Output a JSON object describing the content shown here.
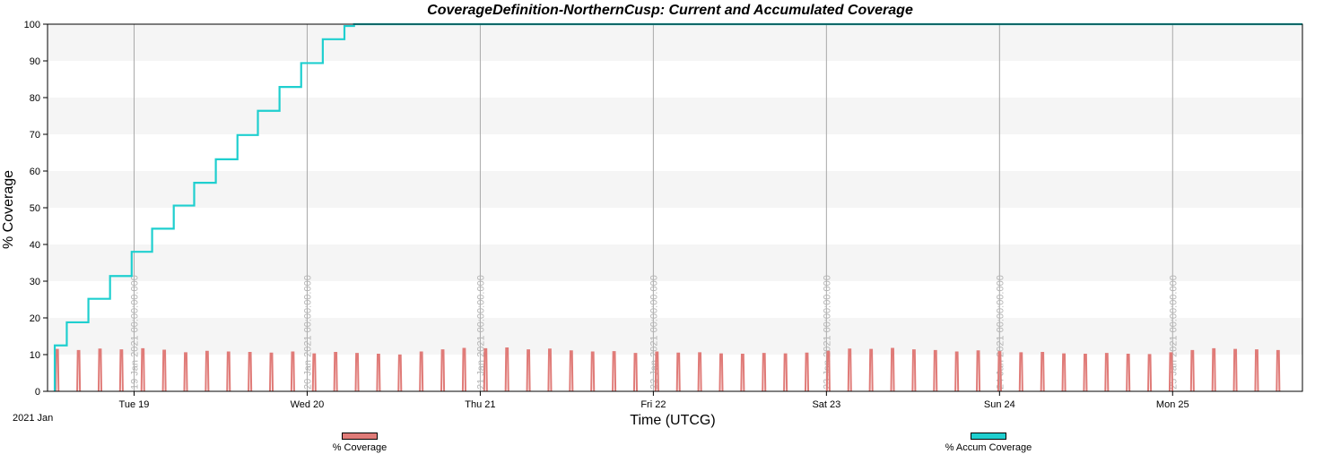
{
  "chart_data": {
    "type": "line",
    "title": "CoverageDefinition-NorthernCusp:  Current and Accumulated Coverage",
    "xlabel": "Time (UTCG)",
    "ylabel": "% Coverage",
    "year_label": "2021 Jan",
    "x_range": [
      "2021-01-18 12:00:00",
      "2021-01-25 18:00:00"
    ],
    "ylim": [
      0,
      100
    ],
    "y_ticks": [
      "0",
      "10",
      "20",
      "30",
      "40",
      "50",
      "60",
      "70",
      "80",
      "90",
      "100"
    ],
    "x_ticks": [
      {
        "x": "2021-01-19 00:00:00",
        "label": "Tue 19",
        "gridline_label": "19 Jan 2021 00:00:00.000"
      },
      {
        "x": "2021-01-20 00:00:00",
        "label": "Wed 20",
        "gridline_label": "20 Jan 2021 00:00:00.000"
      },
      {
        "x": "2021-01-21 00:00:00",
        "label": "Thu 21",
        "gridline_label": "21 Jan 2021 00:00:00.000"
      },
      {
        "x": "2021-01-22 00:00:00",
        "label": "Fri 22",
        "gridline_label": "22 Jan 2021 00:00:00.000"
      },
      {
        "x": "2021-01-23 00:00:00",
        "label": "Sat 23",
        "gridline_label": "23 Jan 2021 00:00:00.000"
      },
      {
        "x": "2021-01-24 00:00:00",
        "label": "Sun 24",
        "gridline_label": "24 Jan 2021 00:00:00.000"
      },
      {
        "x": "2021-01-25 00:00:00",
        "label": "Mon 25",
        "gridline_label": "25 Jan 2021 00:00:00.000"
      }
    ],
    "grid": "vertical gridlines at day ticks, alternating horizontal bands",
    "legend_position": "bottom",
    "series": [
      {
        "name": "% Coverage",
        "color": "#e07b78",
        "style": "periodic spikes",
        "pass_period_hours": 2.97,
        "first_pass": "2021-01-18 13:20:00",
        "last_pass": "2021-01-25 16:40:00",
        "spike_width_hours": 0.38,
        "peak_values": [
          11.3,
          11.0,
          11.4,
          11.2,
          11.5,
          11.1,
          10.4,
          10.8,
          10.6,
          10.5,
          10.3,
          10.6,
          10.1,
          10.5,
          10.2,
          10.0,
          9.8,
          10.6,
          11.2,
          11.6,
          11.5,
          11.7,
          11.2,
          11.4,
          10.9,
          10.6,
          10.7,
          10.2,
          10.6,
          10.3,
          10.4,
          10.1,
          10.0,
          10.2,
          10.1,
          10.3,
          10.8,
          11.4,
          11.3,
          11.6,
          11.2,
          11.0,
          10.6,
          10.9,
          10.7,
          10.4,
          10.5,
          10.1,
          10.0,
          10.2,
          10.0,
          9.9,
          10.4,
          11.0,
          11.5,
          11.3,
          11.2,
          11.0,
          10.8,
          10.6,
          10.9,
          10.4,
          10.5,
          10.2,
          10.0,
          10.3,
          10.1,
          10.2,
          10.6,
          11.0,
          11.6,
          11.4,
          11.2,
          11.0,
          10.7,
          10.8,
          10.5,
          10.4,
          10.6,
          10.2,
          10.0,
          10.1,
          10.2,
          10.5,
          11.2,
          11.5,
          11.3,
          11.1,
          10.9,
          10.6,
          10.5,
          10.4,
          10.6,
          10.2,
          10.0,
          10.1,
          10.3,
          10.7,
          11.1,
          11.6,
          11.4,
          11.2,
          11.0,
          10.7,
          10.6,
          10.5,
          10.3,
          10.4,
          10.2,
          10.0,
          10.3,
          10.6,
          11.0,
          11.4,
          11.2,
          11.1,
          10.8,
          10.6,
          10.5,
          10.3,
          10.4,
          10.2,
          10.1,
          10.6,
          11.3,
          11.5,
          11.4,
          11.2,
          11.0,
          10.8,
          10.7,
          10.4,
          10.6,
          10.3,
          10.5,
          10.4,
          10.2,
          10.5,
          10.8,
          11.2,
          11.4,
          11.3,
          11.1,
          10.9
        ]
      },
      {
        "name": "% Accum Coverage",
        "color": "#1fcfcf",
        "style": "step",
        "points": [
          {
            "x": "2021-01-18 13:00:00",
            "y": 0
          },
          {
            "x": "2021-01-18 13:00:00",
            "y": 12.5
          },
          {
            "x": "2021-01-18 14:40:00",
            "y": 18.8
          },
          {
            "x": "2021-01-18 17:40:00",
            "y": 25.2
          },
          {
            "x": "2021-01-18 20:40:00",
            "y": 31.4
          },
          {
            "x": "2021-01-18 23:40:00",
            "y": 38.0
          },
          {
            "x": "2021-01-19 02:30:00",
            "y": 44.3
          },
          {
            "x": "2021-01-19 05:30:00",
            "y": 50.6
          },
          {
            "x": "2021-01-19 08:20:00",
            "y": 56.8
          },
          {
            "x": "2021-01-19 11:20:00",
            "y": 63.2
          },
          {
            "x": "2021-01-19 14:20:00",
            "y": 69.8
          },
          {
            "x": "2021-01-19 17:10:00",
            "y": 76.4
          },
          {
            "x": "2021-01-19 20:10:00",
            "y": 82.9
          },
          {
            "x": "2021-01-19 23:10:00",
            "y": 89.4
          },
          {
            "x": "2021-01-20 02:10:00",
            "y": 95.9
          },
          {
            "x": "2021-01-20 05:10:00",
            "y": 99.5
          },
          {
            "x": "2021-01-20 06:30:00",
            "y": 100
          },
          {
            "x": "2021-01-25 18:00:00",
            "y": 100
          }
        ]
      }
    ]
  }
}
